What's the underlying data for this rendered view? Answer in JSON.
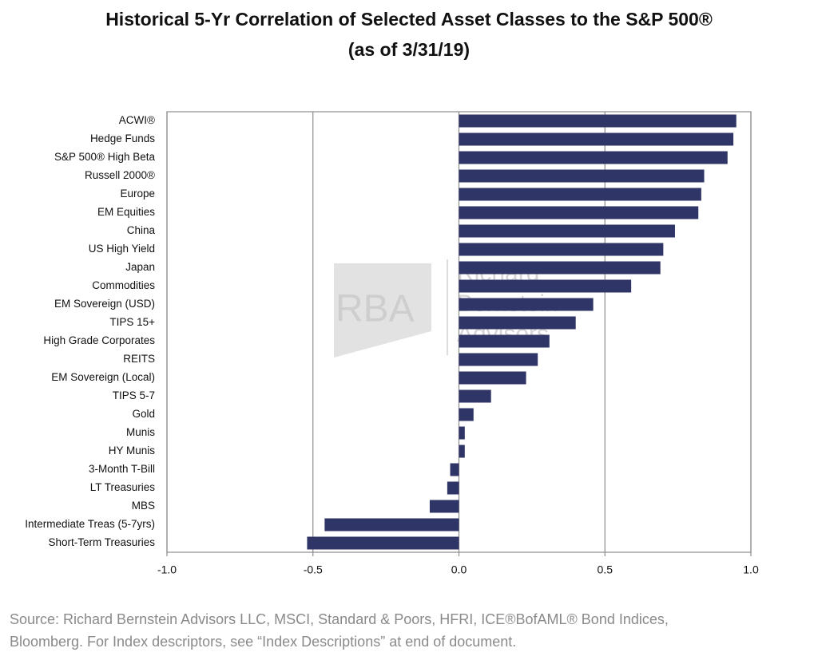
{
  "chart_data": {
    "type": "bar",
    "orientation": "horizontal",
    "title": "Historical 5-Yr Correlation of Selected Asset Classes to the S&P 500®",
    "subtitle": "(as of 3/31/19)",
    "categories": [
      "ACWI®",
      "Hedge Funds",
      "S&P 500® High Beta",
      "Russell 2000®",
      "Europe",
      "EM Equities",
      "China",
      "US High Yield",
      "Japan",
      "Commodities",
      "EM Sovereign (USD)",
      "TIPS 15+",
      "High Grade Corporates",
      "REITS",
      "EM Sovereign (Local)",
      "TIPS 5-7",
      "Gold",
      "Munis",
      "HY Munis",
      "3-Month T-Bill",
      "LT Treasuries",
      "MBS",
      "Intermediate Treas (5-7yrs)",
      "Short-Term Treasuries"
    ],
    "values": [
      0.95,
      0.94,
      0.92,
      0.84,
      0.83,
      0.82,
      0.74,
      0.7,
      0.69,
      0.59,
      0.46,
      0.4,
      0.31,
      0.27,
      0.23,
      0.11,
      0.05,
      0.02,
      0.02,
      -0.03,
      -0.04,
      -0.1,
      -0.46,
      -0.52
    ],
    "color": "#2f3566",
    "xlim": [
      -1.0,
      1.0
    ],
    "xticks": [
      {
        "value": -1.0,
        "label": "-1.0"
      },
      {
        "value": -0.5,
        "label": "-0.5"
      },
      {
        "value": 0,
        "label": "0.0"
      },
      {
        "value": 0.5,
        "label": "0.5"
      },
      {
        "value": 1.0,
        "label": "1.0"
      }
    ],
    "grid": true,
    "watermark": [
      "RBA",
      "Richard",
      "Bernstein",
      "Advisors"
    ],
    "source": "Source: Richard Bernstein Advisors LLC, MSCI, Standard & Poors, HFRI, ICE®BofAML® Bond Indices, Bloomberg. For Index descriptors, see “Index Descriptions” at end of document."
  }
}
